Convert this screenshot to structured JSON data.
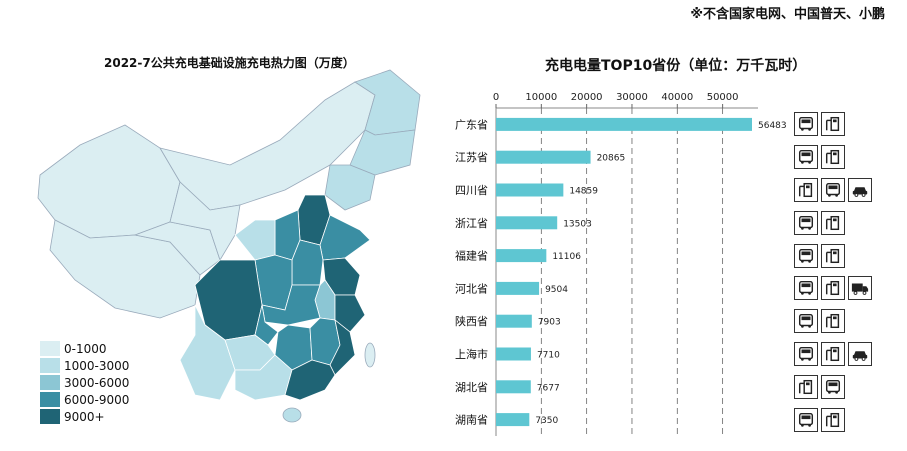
{
  "note": "※不含国家电网、中国普天、小鹏",
  "map": {
    "title": "2022-7公共充电基础设施充电热力图（万度）",
    "legend": [
      {
        "label": "0-1000",
        "color": "#dbeef2"
      },
      {
        "label": "1000-3000",
        "color": "#b8dfe8"
      },
      {
        "label": "3000-6000",
        "color": "#8cc6d4"
      },
      {
        "label": "6000-9000",
        "color": "#3a8ea3"
      },
      {
        "label": "9000+",
        "color": "#1f6475"
      }
    ]
  },
  "chart_data": {
    "type": "bar",
    "title": "充电电量TOP10省份（单位：万千瓦时）",
    "categories": [
      "广东省",
      "江苏省",
      "四川省",
      "浙江省",
      "福建省",
      "河北省",
      "陕西省",
      "上海市",
      "湖北省",
      "湖南省"
    ],
    "values": [
      56483,
      20865,
      14859,
      13503,
      11106,
      9504,
      7903,
      7710,
      7677,
      7350
    ],
    "value_labels": [
      "56483",
      "20865",
      "14859",
      "13503",
      "11106",
      "9504",
      "7903",
      "7710",
      "7677",
      "7350"
    ],
    "xlim": [
      0,
      56483
    ],
    "xticks": [
      0,
      10000,
      20000,
      30000,
      40000,
      50000
    ],
    "xtick_labels": [
      "0",
      "10000",
      "20000",
      "30000",
      "40000",
      "50000"
    ],
    "bar_color": "#5ec6d2",
    "grid": "vertical dashed"
  },
  "icons": [
    [
      "bus-icon",
      "charger-icon"
    ],
    [
      "bus-icon",
      "charger-icon"
    ],
    [
      "charger-icon",
      "bus-icon",
      "car-icon"
    ],
    [
      "bus-icon",
      "charger-icon"
    ],
    [
      "bus-icon",
      "charger-icon"
    ],
    [
      "bus-icon",
      "charger-icon",
      "truck-icon"
    ],
    [
      "bus-icon",
      "charger-icon"
    ],
    [
      "bus-icon",
      "charger-icon",
      "car-icon"
    ],
    [
      "charger-icon",
      "bus-icon"
    ],
    [
      "bus-icon",
      "charger-icon"
    ]
  ]
}
